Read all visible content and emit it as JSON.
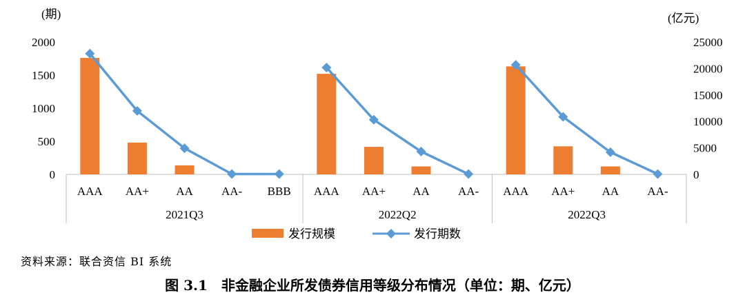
{
  "chart_data": {
    "type": "bar",
    "left_axis": {
      "unit": "(期)",
      "ticks": [
        0,
        500,
        1000,
        1500,
        2000
      ],
      "range": [
        0,
        2000
      ]
    },
    "right_axis": {
      "unit": "(亿元)",
      "ticks": [
        0,
        5000,
        10000,
        15000,
        20000,
        25000
      ],
      "range": [
        0,
        25000
      ]
    },
    "groups": [
      {
        "label": "2021Q3",
        "categories": [
          "AAA",
          "AA+",
          "AA",
          "AA-",
          "BBB"
        ]
      },
      {
        "label": "2022Q2",
        "categories": [
          "AAA",
          "AA+",
          "AA",
          "AA-"
        ]
      },
      {
        "label": "2022Q3",
        "categories": [
          "AAA",
          "AA+",
          "AA",
          "AA-"
        ]
      }
    ],
    "series": [
      {
        "name": "发行规模",
        "type": "bar",
        "axis": "right",
        "color": "#ED7D31",
        "values": [
          22000,
          6000,
          1700,
          0,
          0,
          19000,
          5200,
          1500,
          0,
          20400,
          5300,
          1500,
          0
        ]
      },
      {
        "name": "发行期数",
        "type": "line",
        "axis": "left",
        "color": "#5B9BD5",
        "values": [
          1825,
          960,
          395,
          5,
          5,
          1615,
          825,
          345,
          5,
          1655,
          870,
          335,
          5
        ]
      }
    ]
  },
  "source_text": "资料来源：联合资信 BI 系统",
  "caption": "图 3.1　非金融企业所发债券信用等级分布情况（单位：期、亿元）"
}
